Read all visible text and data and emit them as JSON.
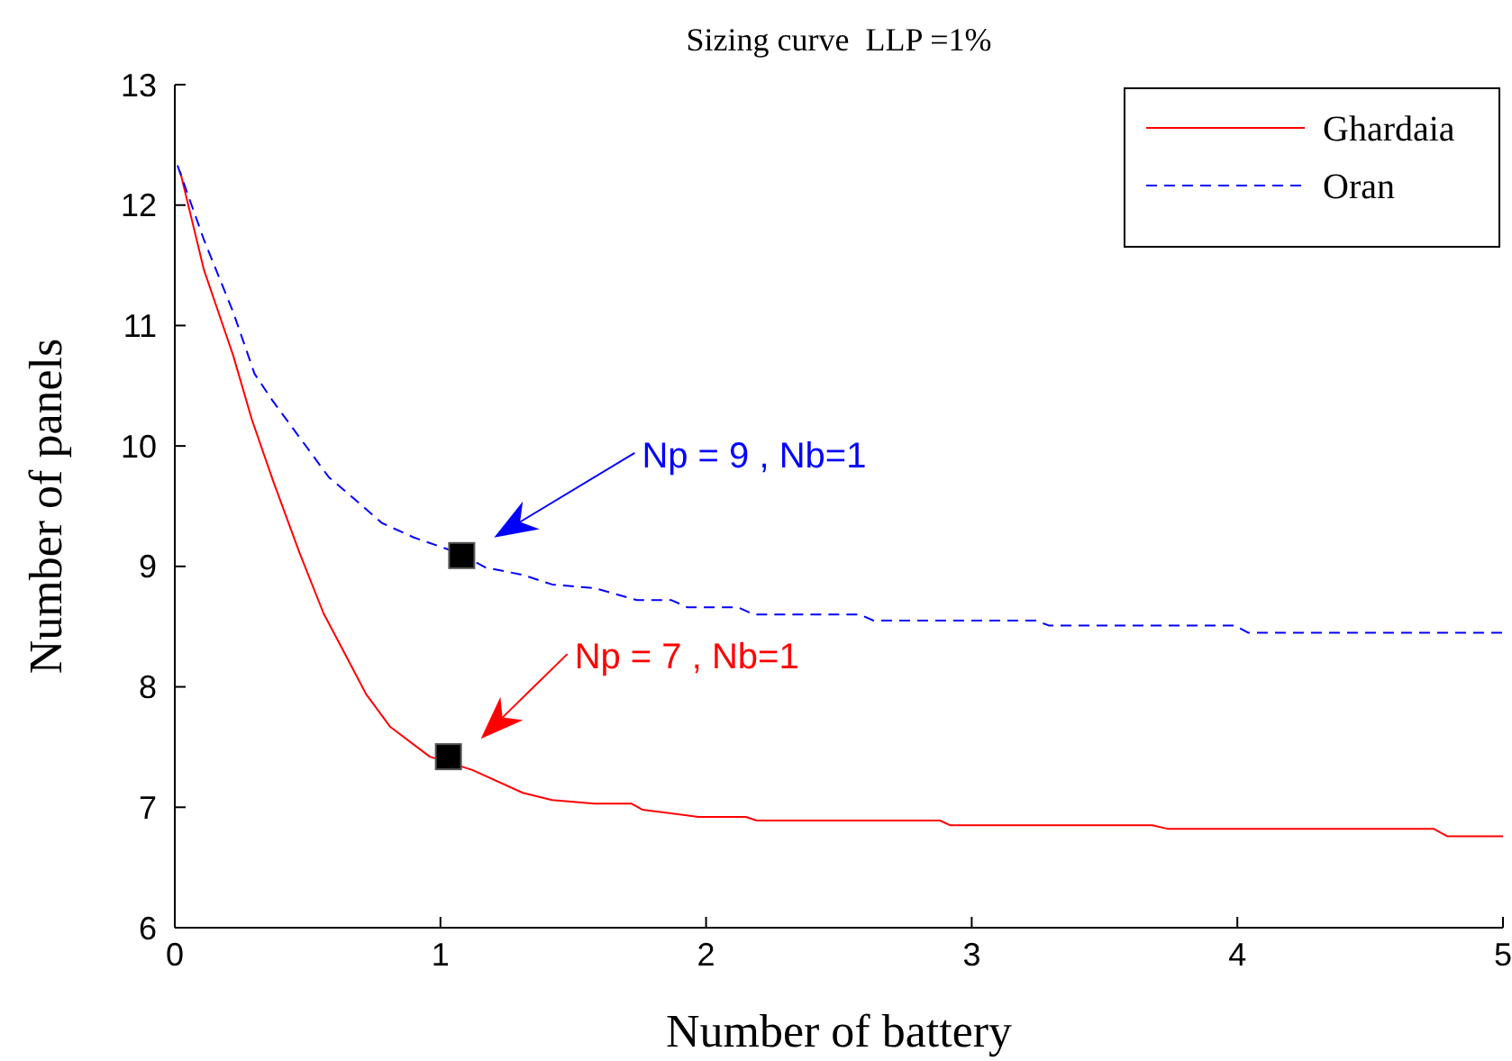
{
  "chart_data": {
    "type": "line",
    "title": "Sizing curve  LLP =1%",
    "xlabel": "Number of battery",
    "ylabel": "Number of panels",
    "xlim": [
      0,
      5
    ],
    "xticks": [
      0,
      1,
      2,
      3,
      4,
      5
    ],
    "ylim": [
      6,
      13
    ],
    "yticks": [
      6,
      7,
      8,
      9,
      10,
      11,
      12,
      13
    ],
    "grid": false,
    "legend": "top right",
    "marker": "none",
    "annotations": [
      "Np = 9 , Nb=1",
      "Np = 7 , Nb=1"
    ],
    "series": [
      {
        "name": "Ghardaia",
        "color": "#ff0000",
        "line_style": "solid",
        "x": [
          0.02,
          0.11,
          0.22,
          0.29,
          0.37,
          0.47,
          0.56,
          0.62,
          0.72,
          0.81,
          0.96,
          1.12,
          1.31,
          1.42,
          1.58,
          1.72,
          1.76,
          1.97,
          2.15,
          2.19,
          2.88,
          2.92,
          3.68,
          3.74,
          4.74,
          4.79,
          5
        ],
        "values": [
          12.28,
          11.46,
          10.75,
          10.22,
          9.71,
          9.11,
          8.61,
          8.36,
          7.94,
          7.67,
          7.42,
          7.31,
          7.12,
          7.06,
          7.03,
          7.03,
          6.98,
          6.92,
          6.92,
          6.89,
          6.89,
          6.85,
          6.85,
          6.82,
          6.82,
          6.76,
          6.76
        ]
      },
      {
        "name": "Oran",
        "color": "#0000ff",
        "line_style": "dashed",
        "x": [
          0.01,
          0.11,
          0.22,
          0.3,
          0.37,
          0.44,
          0.52,
          0.58,
          0.66,
          0.78,
          0.9,
          1.07,
          1.17,
          1.31,
          1.42,
          1.58,
          1.74,
          1.87,
          1.93,
          2.12,
          2.18,
          2.58,
          2.63,
          3.24,
          3.29,
          3.99,
          4.04,
          5
        ],
        "values": [
          12.33,
          11.71,
          11.11,
          10.6,
          10.37,
          10.16,
          9.92,
          9.74,
          9.59,
          9.36,
          9.24,
          9.11,
          8.99,
          8.93,
          8.85,
          8.82,
          8.72,
          8.72,
          8.66,
          8.66,
          8.6,
          8.6,
          8.55,
          8.55,
          8.51,
          8.51,
          8.45,
          8.45
        ]
      },
      {
        "type": "scatter",
        "color": "#000000",
        "marker": "square",
        "x": [
          1.08,
          1.03
        ],
        "values": [
          9.09,
          7.42
        ]
      }
    ]
  }
}
